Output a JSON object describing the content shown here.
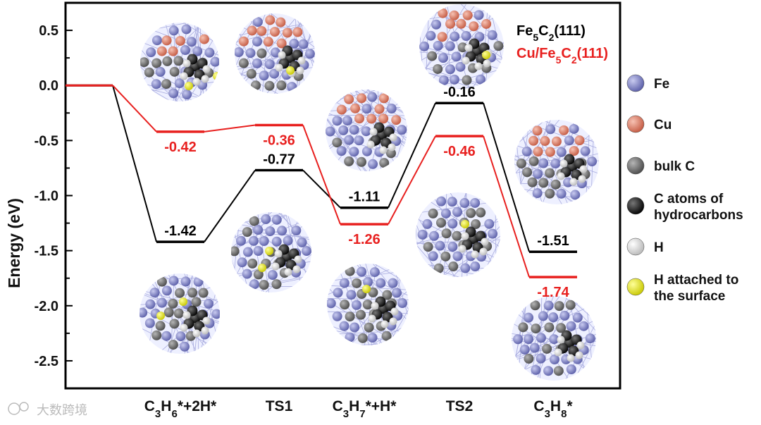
{
  "chart_data": {
    "type": "line",
    "title": "",
    "xlabel": "",
    "ylabel": "Energy (eV)",
    "ylim": [
      -2.75,
      0.75
    ],
    "yticks": [
      "0.5",
      "0.0",
      "-0.5",
      "-1.0",
      "-1.5",
      "-2.0",
      "-2.5"
    ],
    "ytick_values": [
      0.5,
      0.0,
      -0.5,
      -1.0,
      -1.5,
      -2.0,
      -2.5
    ],
    "categories": [
      {
        "base": "C",
        "sub1": "3",
        "mid": "H",
        "sub2": "6",
        "suffix": "*+2H*"
      },
      {
        "base": "TS1",
        "sub1": "",
        "mid": "",
        "sub2": "",
        "suffix": ""
      },
      {
        "base": "C",
        "sub1": "3",
        "mid": "H",
        "sub2": "7",
        "suffix": "*+H*"
      },
      {
        "base": "TS2",
        "sub1": "",
        "mid": "",
        "sub2": "",
        "suffix": ""
      },
      {
        "base": "C",
        "sub1": "3",
        "mid": "H",
        "sub2": "8",
        "suffix": "*"
      }
    ],
    "initial_value": 0.0,
    "series": [
      {
        "name_parts": [
          "Fe",
          "5",
          "C",
          "2",
          "(111)"
        ],
        "color": "#000000",
        "values": [
          -1.42,
          -0.77,
          -1.11,
          -0.16,
          -1.51
        ],
        "labels": [
          "-1.42",
          "-0.77",
          "-1.11",
          "-0.16",
          "-1.51"
        ]
      },
      {
        "name_parts": [
          "Cu/Fe",
          "5",
          "C",
          "2",
          "(111)"
        ],
        "color": "#e8201f",
        "values": [
          -0.42,
          -0.36,
          -1.26,
          -0.46,
          -1.74
        ],
        "labels": [
          "-0.42",
          "-0.36",
          "-1.26",
          "-0.46",
          "-1.74"
        ]
      }
    ],
    "grid": false,
    "legend_position": "top-right"
  },
  "atom_legend": [
    {
      "label": "Fe",
      "color": "#7b7fc4",
      "icon": "fe-atom-icon"
    },
    {
      "label": "Cu",
      "color": "#e27a62",
      "icon": "cu-atom-icon"
    },
    {
      "label": "bulk C",
      "color": "#6e6e6e",
      "icon": "bulk-c-atom-icon"
    },
    {
      "label": "C atoms of\nhydrocarbons",
      "color": "#111111",
      "icon": "hydrocarbon-c-atom-icon"
    },
    {
      "label": "H",
      "color": "#f2f2f2",
      "icon": "h-atom-icon"
    },
    {
      "label": "H attached to\nthe surface",
      "color": "#eeee22",
      "icon": "surface-h-atom-icon"
    }
  ],
  "watermark": "大数跨境",
  "colors": {
    "fe": "#7b7fc4",
    "cu": "#e27a62",
    "bulkC": "#6e6e6e",
    "hydroC": "#111111",
    "h": "#f2f2f2",
    "hs": "#eeee22",
    "mesh": "#b8b8e8"
  }
}
